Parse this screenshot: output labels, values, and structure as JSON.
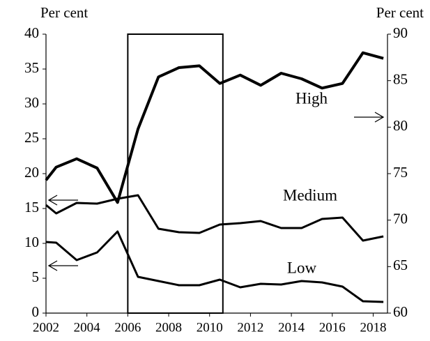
{
  "chart_data": {
    "type": "line",
    "y_label": "Per cent",
    "y2_label": "Per cent",
    "x": [
      2002,
      2002.5,
      2003.5,
      2004.5,
      2005.5,
      2006.5,
      2007.5,
      2008.5,
      2009.5,
      2010.5,
      2011.5,
      2012.5,
      2013.5,
      2014.5,
      2015.5,
      2016.5,
      2017.5,
      2018.5
    ],
    "series": [
      {
        "name": "High",
        "color": "#000000",
        "axis": "y2",
        "values": [
          74.3,
          75.7,
          76.6,
          75.6,
          71.9,
          79.8,
          85.4,
          86.4,
          86.6,
          84.7,
          85.6,
          84.5,
          85.8,
          85.2,
          84.2,
          84.7,
          88.0,
          87.4
        ]
      },
      {
        "name": "Medium",
        "color": "#000000",
        "values": [
          15.5,
          14.3,
          15.8,
          15.7,
          16.4,
          16.9,
          12.1,
          11.6,
          11.5,
          12.7,
          12.9,
          13.2,
          12.2,
          12.2,
          13.5,
          13.7,
          10.4,
          11.0
        ]
      },
      {
        "name": "Low",
        "color": "#000000",
        "values": [
          10.2,
          10.1,
          7.6,
          8.7,
          11.7,
          5.2,
          4.6,
          4.0,
          4.0,
          4.8,
          3.7,
          4.2,
          4.1,
          4.6,
          4.4,
          3.8,
          1.7,
          1.6
        ]
      }
    ],
    "highlight_x": [
      2006,
      2010.65
    ],
    "xlim": [
      2002,
      2018.7
    ],
    "xticks": [
      2002,
      2004,
      2006,
      2008,
      2010,
      2012,
      2014,
      2016,
      2018
    ],
    "ylim": [
      0,
      40
    ],
    "yticks": [
      0,
      5,
      10,
      15,
      20,
      25,
      30,
      35,
      40
    ],
    "y2lim": [
      60,
      90
    ],
    "y2ticks": [
      60,
      65,
      70,
      75,
      80,
      85,
      90
    ]
  }
}
